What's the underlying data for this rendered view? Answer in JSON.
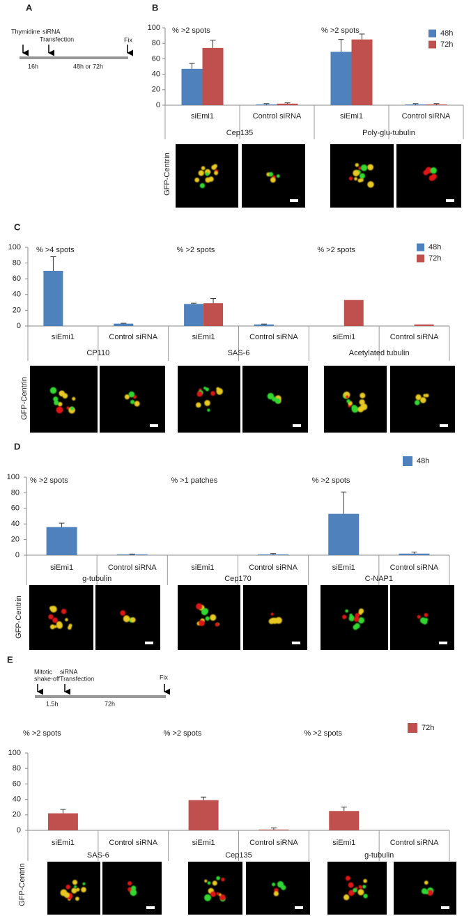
{
  "panel_labels": [
    "A",
    "B",
    "C",
    "D",
    "E"
  ],
  "timelines": [
    {
      "labels": [
        "Thymidine",
        "siRNA",
        "Transfection",
        "Fix"
      ],
      "intervals": [
        "16h",
        "48h or 72h"
      ]
    },
    {
      "labels": [
        "Mitotic",
        "shake-off",
        "siRNA",
        "Transfection",
        "Fix"
      ],
      "intervals": [
        "1.5h",
        "72h"
      ]
    }
  ],
  "chart_data": [
    {
      "type": "bar",
      "annotations": [
        "% >2 spots",
        "% >2 spots"
      ],
      "categories": [
        "siEmi1",
        "Control siRNA",
        "siEmi1",
        "Control siRNA"
      ],
      "groups": [
        "Cep135",
        "Poly-glu-tubulin"
      ],
      "group_color": "#e02020",
      "series": [
        {
          "name": "48h",
          "color": "#4f81bd",
          "values": [
            47,
            1,
            69,
            1
          ],
          "errors": [
            7,
            1,
            16,
            1
          ]
        },
        {
          "name": "72h",
          "color": "#c0504d",
          "values": [
            74,
            2,
            85,
            1
          ],
          "errors": [
            10,
            1,
            7,
            1
          ]
        }
      ],
      "ylim": [
        0,
        100
      ],
      "yticks": [
        0,
        20,
        40,
        60,
        80,
        100
      ],
      "image_label": "GFP-Centrin"
    },
    {
      "type": "bar",
      "annotations": [
        "% >4 spots",
        "% >2 spots",
        "% >2 spots"
      ],
      "categories": [
        "siEmi1",
        "Control siRNA",
        "siEmi1",
        "Control siRNA",
        "siEmi1",
        "Control siRNA"
      ],
      "groups": [
        "CP110",
        "SAS-6",
        "Acetylated tubulin"
      ],
      "group_color": "#e02020",
      "series": [
        {
          "name": "48h",
          "color": "#4f81bd",
          "values": [
            70,
            3,
            28,
            2,
            null,
            null
          ],
          "errors": [
            18,
            0.5,
            1,
            0.5,
            null,
            null
          ]
        },
        {
          "name": "72h",
          "color": "#c0504d",
          "values": [
            null,
            null,
            29,
            null,
            33,
            2
          ],
          "errors": [
            null,
            null,
            6,
            null,
            null,
            null
          ]
        }
      ],
      "ylim": [
        0,
        100
      ],
      "yticks": [
        0,
        20,
        40,
        60,
        80,
        100
      ],
      "image_label": "GFP-Centrin"
    },
    {
      "type": "bar",
      "annotations": [
        "% >2 spots",
        "% >1 patches",
        "% >2 spots"
      ],
      "categories": [
        "siEmi1",
        "Control siRNA",
        "siEmi1",
        "Control siRNA",
        "siEmi1",
        "Control siRNA"
      ],
      "groups": [
        "g-tubulin",
        "Cep170",
        "C-NAP1"
      ],
      "group_color": "#000000",
      "series": [
        {
          "name": "48h",
          "color": "#4f81bd",
          "values": [
            36,
            1,
            0,
            1,
            53,
            2
          ],
          "errors": [
            5,
            0.5,
            null,
            1,
            28,
            2
          ]
        }
      ],
      "ylim": [
        0,
        100
      ],
      "yticks": [
        0,
        20,
        40,
        60,
        80,
        100
      ],
      "image_label": "GFP-Centrin"
    },
    {
      "type": "bar",
      "annotations": [
        "% >2 spots",
        "% >2 spots",
        "% >2 spots"
      ],
      "categories": [
        "siEmi1",
        "Control siRNA",
        "siEmi1",
        "Control siRNA",
        "siEmi1",
        "Control siRNA"
      ],
      "groups": [
        "SAS-6",
        "Cep135",
        "g-tubulin"
      ],
      "group_color": "#000000",
      "series": [
        {
          "name": "72h",
          "color": "#c0504d",
          "values": [
            22,
            0,
            39,
            1,
            25,
            0
          ],
          "errors": [
            5,
            null,
            4,
            2,
            5,
            null
          ]
        }
      ],
      "ylim": [
        0,
        100
      ],
      "yticks": [
        0,
        20,
        40,
        60,
        80,
        100
      ],
      "image_label": "GFP-Centrin"
    }
  ]
}
